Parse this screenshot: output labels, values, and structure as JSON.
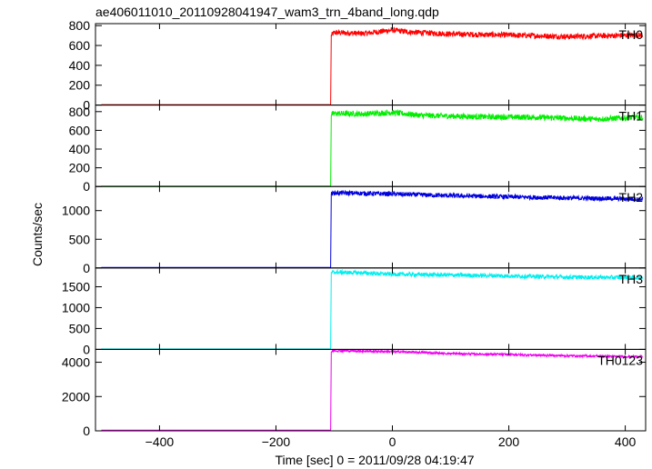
{
  "chart_data": {
    "type": "line",
    "title": "ae406011010_20110928041947_wam3_trn_4band_long.qdp",
    "xlabel": "Time [sec] 0 = 2011/09/28 04:19:47",
    "ylabel": "Counts/sec",
    "xlim": [
      -510,
      435
    ],
    "xticks": [
      -400,
      -200,
      0,
      200,
      400
    ],
    "grid": false,
    "step_time": -105,
    "panels": [
      {
        "name": "TH0",
        "color": "#ff0000",
        "ylim": [
          0,
          820
        ],
        "yticks": [
          0,
          200,
          400,
          600,
          800
        ],
        "pre_level": 5,
        "noise": 28,
        "profile": [
          [
            -105,
            700
          ],
          [
            -100,
            730
          ],
          [
            -50,
            720
          ],
          [
            0,
            755
          ],
          [
            30,
            735
          ],
          [
            100,
            715
          ],
          [
            200,
            705
          ],
          [
            300,
            690
          ],
          [
            430,
            705
          ]
        ]
      },
      {
        "name": "TH1",
        "color": "#00ee00",
        "ylim": [
          0,
          870
        ],
        "yticks": [
          0,
          200,
          400,
          600,
          800
        ],
        "pre_level": 5,
        "noise": 30,
        "profile": [
          [
            -105,
            770
          ],
          [
            -100,
            780
          ],
          [
            -50,
            775
          ],
          [
            0,
            790
          ],
          [
            50,
            760
          ],
          [
            150,
            745
          ],
          [
            250,
            740
          ],
          [
            350,
            720
          ],
          [
            430,
            740
          ]
        ]
      },
      {
        "name": "TH2",
        "color": "#0000dd",
        "ylim": [
          0,
          1420
        ],
        "yticks": [
          0,
          500,
          1000
        ],
        "pre_level": 10,
        "noise": 40,
        "profile": [
          [
            -105,
            1290
          ],
          [
            -100,
            1310
          ],
          [
            -50,
            1300
          ],
          [
            0,
            1290
          ],
          [
            100,
            1260
          ],
          [
            200,
            1240
          ],
          [
            300,
            1220
          ],
          [
            430,
            1200
          ]
        ]
      },
      {
        "name": "TH3",
        "color": "#00eeee",
        "ylim": [
          0,
          1950
        ],
        "yticks": [
          0,
          500,
          1000,
          1500
        ],
        "pre_level": 10,
        "noise": 50,
        "profile": [
          [
            -105,
            1830
          ],
          [
            -100,
            1850
          ],
          [
            -50,
            1830
          ],
          [
            0,
            1800
          ],
          [
            100,
            1780
          ],
          [
            200,
            1760
          ],
          [
            300,
            1730
          ],
          [
            430,
            1720
          ]
        ]
      },
      {
        "name": "TH0123",
        "color": "#ee00ee",
        "ylim": [
          0,
          4750
        ],
        "yticks": [
          0,
          2000,
          4000
        ],
        "pre_level": 35,
        "noise": 65,
        "profile": [
          [
            -105,
            4600
          ],
          [
            -100,
            4680
          ],
          [
            -50,
            4650
          ],
          [
            0,
            4620
          ],
          [
            50,
            4570
          ],
          [
            100,
            4500
          ],
          [
            200,
            4450
          ],
          [
            300,
            4380
          ],
          [
            430,
            4320
          ]
        ]
      }
    ]
  }
}
